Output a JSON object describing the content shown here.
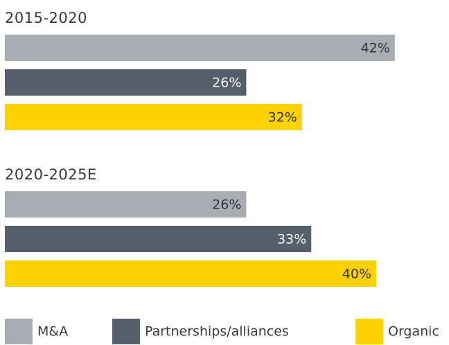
{
  "chart_data": {
    "type": "bar",
    "orientation": "horizontal",
    "categories": [
      "2015-2020",
      "2020-2025E"
    ],
    "series": [
      {
        "name": "M&A",
        "color": "#a7adb3",
        "values": [
          42,
          26
        ],
        "value_labels": [
          "42%",
          "26%"
        ]
      },
      {
        "name": "Partnerships/alliances",
        "color": "#555f6b",
        "values": [
          26,
          33
        ],
        "value_labels": [
          "26%",
          "33%"
        ]
      },
      {
        "name": "Organic",
        "color": "#ffd200",
        "values": [
          32,
          40
        ],
        "value_labels": [
          "32%",
          "40%"
        ]
      }
    ],
    "legend": "bottom"
  }
}
